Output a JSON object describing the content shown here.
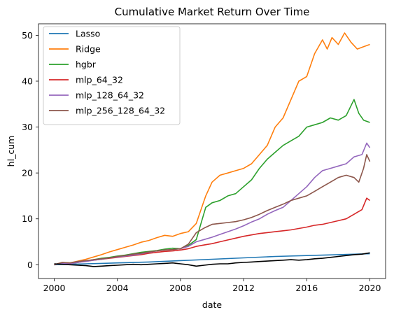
{
  "chart_data": {
    "type": "line",
    "title": "Cumulative Market Return Over Time",
    "xlabel": "date",
    "ylabel": "hl_cum",
    "xlim": [
      2000,
      2020
    ],
    "ylim": [
      -3,
      52.5
    ],
    "x_ticks": [
      2000,
      2004,
      2008,
      2012,
      2016,
      2020
    ],
    "x_tick_labels": [
      "2000",
      "2004",
      "2008",
      "2012",
      "2016",
      "2020"
    ],
    "y_ticks": [
      0,
      10,
      20,
      30,
      40,
      50
    ],
    "y_tick_labels": [
      "0",
      "10",
      "20",
      "30",
      "40",
      "50"
    ],
    "grid": false,
    "legend_position": "upper-left",
    "series": [
      {
        "name": "Lasso",
        "color": "#1f77b4",
        "points": [
          [
            2000,
            0.0
          ],
          [
            2001,
            0.1
          ],
          [
            2002,
            0.2
          ],
          [
            2003,
            0.3
          ],
          [
            2004,
            0.4
          ],
          [
            2006,
            0.6
          ],
          [
            2008,
            0.9
          ],
          [
            2010,
            1.2
          ],
          [
            2012,
            1.5
          ],
          [
            2014,
            1.8
          ],
          [
            2016,
            2.0
          ],
          [
            2018,
            2.2
          ],
          [
            2020,
            2.4
          ]
        ]
      },
      {
        "name": "Ridge",
        "color": "#ff7f0e",
        "points": [
          [
            2000,
            0.0
          ],
          [
            2000.5,
            0.5
          ],
          [
            2001,
            0.4
          ],
          [
            2001.5,
            0.8
          ],
          [
            2002,
            1.2
          ],
          [
            2002.5,
            1.7
          ],
          [
            2003,
            2.2
          ],
          [
            2003.5,
            2.8
          ],
          [
            2004,
            3.3
          ],
          [
            2004.5,
            3.8
          ],
          [
            2005,
            4.3
          ],
          [
            2005.5,
            4.9
          ],
          [
            2006,
            5.3
          ],
          [
            2006.5,
            5.9
          ],
          [
            2007,
            6.4
          ],
          [
            2007.5,
            6.2
          ],
          [
            2008,
            6.8
          ],
          [
            2008.5,
            7.2
          ],
          [
            2009,
            9.0
          ],
          [
            2009.3,
            12.0
          ],
          [
            2009.6,
            15.0
          ],
          [
            2010,
            18.0
          ],
          [
            2010.5,
            19.5
          ],
          [
            2011,
            20.0
          ],
          [
            2011.5,
            20.5
          ],
          [
            2012,
            21.0
          ],
          [
            2012.5,
            22.0
          ],
          [
            2013,
            24.0
          ],
          [
            2013.5,
            26.0
          ],
          [
            2014,
            30.0
          ],
          [
            2014.5,
            32.0
          ],
          [
            2015,
            36.0
          ],
          [
            2015.5,
            40.0
          ],
          [
            2016,
            41.0
          ],
          [
            2016.5,
            46.0
          ],
          [
            2017,
            49.0
          ],
          [
            2017.3,
            47.0
          ],
          [
            2017.6,
            49.5
          ],
          [
            2018,
            48.0
          ],
          [
            2018.4,
            50.5
          ],
          [
            2018.8,
            48.5
          ],
          [
            2019.2,
            47.0
          ],
          [
            2019.6,
            47.5
          ],
          [
            2020,
            48.0
          ]
        ]
      },
      {
        "name": "hgbr",
        "color": "#2ca02c",
        "points": [
          [
            2000,
            0.0
          ],
          [
            2000.5,
            0.3
          ],
          [
            2001,
            0.2
          ],
          [
            2001.5,
            0.5
          ],
          [
            2002,
            0.8
          ],
          [
            2002.5,
            1.1
          ],
          [
            2003,
            1.4
          ],
          [
            2003.5,
            1.6
          ],
          [
            2004,
            1.9
          ],
          [
            2004.5,
            2.1
          ],
          [
            2005,
            2.4
          ],
          [
            2005.5,
            2.7
          ],
          [
            2006,
            2.9
          ],
          [
            2006.5,
            3.1
          ],
          [
            2007,
            3.4
          ],
          [
            2007.5,
            3.6
          ],
          [
            2008,
            3.5
          ],
          [
            2008.5,
            4.2
          ],
          [
            2009,
            5.5
          ],
          [
            2009.3,
            9.0
          ],
          [
            2009.6,
            12.5
          ],
          [
            2010,
            13.5
          ],
          [
            2010.5,
            14.0
          ],
          [
            2011,
            15.0
          ],
          [
            2011.5,
            15.5
          ],
          [
            2012,
            17.0
          ],
          [
            2012.5,
            18.5
          ],
          [
            2013,
            21.0
          ],
          [
            2013.5,
            23.0
          ],
          [
            2014,
            24.5
          ],
          [
            2014.5,
            26.0
          ],
          [
            2015,
            27.0
          ],
          [
            2015.5,
            28.0
          ],
          [
            2016,
            30.0
          ],
          [
            2016.5,
            30.5
          ],
          [
            2017,
            31.0
          ],
          [
            2017.5,
            32.0
          ],
          [
            2018,
            31.5
          ],
          [
            2018.5,
            32.5
          ],
          [
            2019,
            36.0
          ],
          [
            2019.3,
            33.0
          ],
          [
            2019.6,
            31.5
          ],
          [
            2020,
            31.0
          ]
        ]
      },
      {
        "name": "mlp_64_32",
        "color": "#d62728",
        "points": [
          [
            2000,
            0.0
          ],
          [
            2000.5,
            0.4
          ],
          [
            2001,
            0.3
          ],
          [
            2001.5,
            0.5
          ],
          [
            2002,
            0.8
          ],
          [
            2002.5,
            1.0
          ],
          [
            2003,
            1.2
          ],
          [
            2003.5,
            1.4
          ],
          [
            2004,
            1.6
          ],
          [
            2004.5,
            1.8
          ],
          [
            2005,
            2.0
          ],
          [
            2005.5,
            2.2
          ],
          [
            2006,
            2.5
          ],
          [
            2006.5,
            2.7
          ],
          [
            2007,
            2.9
          ],
          [
            2007.5,
            3.0
          ],
          [
            2008,
            3.2
          ],
          [
            2008.5,
            3.5
          ],
          [
            2009,
            4.0
          ],
          [
            2009.5,
            4.3
          ],
          [
            2010,
            4.6
          ],
          [
            2010.5,
            5.0
          ],
          [
            2011,
            5.4
          ],
          [
            2011.5,
            5.8
          ],
          [
            2012,
            6.2
          ],
          [
            2012.5,
            6.5
          ],
          [
            2013,
            6.8
          ],
          [
            2013.5,
            7.0
          ],
          [
            2014,
            7.2
          ],
          [
            2014.5,
            7.4
          ],
          [
            2015,
            7.6
          ],
          [
            2015.5,
            7.9
          ],
          [
            2016,
            8.2
          ],
          [
            2016.5,
            8.6
          ],
          [
            2017,
            8.8
          ],
          [
            2017.5,
            9.2
          ],
          [
            2018,
            9.6
          ],
          [
            2018.5,
            10.0
          ],
          [
            2019,
            11.0
          ],
          [
            2019.5,
            12.0
          ],
          [
            2019.8,
            14.5
          ],
          [
            2020,
            14.0
          ]
        ]
      },
      {
        "name": "mlp_128_64_32",
        "color": "#9467bd",
        "points": [
          [
            2000,
            0.0
          ],
          [
            2000.5,
            0.3
          ],
          [
            2001,
            0.2
          ],
          [
            2001.5,
            0.5
          ],
          [
            2002,
            0.7
          ],
          [
            2002.5,
            1.0
          ],
          [
            2003,
            1.2
          ],
          [
            2003.5,
            1.5
          ],
          [
            2004,
            1.7
          ],
          [
            2004.5,
            1.9
          ],
          [
            2005,
            2.1
          ],
          [
            2005.5,
            2.4
          ],
          [
            2006,
            2.7
          ],
          [
            2006.5,
            3.0
          ],
          [
            2007,
            3.2
          ],
          [
            2007.5,
            3.3
          ],
          [
            2008,
            3.5
          ],
          [
            2008.5,
            4.0
          ],
          [
            2009,
            5.0
          ],
          [
            2009.5,
            5.5
          ],
          [
            2010,
            6.0
          ],
          [
            2010.5,
            6.6
          ],
          [
            2011,
            7.2
          ],
          [
            2011.5,
            7.8
          ],
          [
            2012,
            8.5
          ],
          [
            2012.5,
            9.3
          ],
          [
            2013,
            10.0
          ],
          [
            2013.5,
            11.0
          ],
          [
            2014,
            11.8
          ],
          [
            2014.5,
            12.5
          ],
          [
            2015,
            14.0
          ],
          [
            2015.5,
            15.5
          ],
          [
            2016,
            17.0
          ],
          [
            2016.5,
            19.0
          ],
          [
            2017,
            20.5
          ],
          [
            2017.5,
            21.0
          ],
          [
            2018,
            21.5
          ],
          [
            2018.5,
            22.0
          ],
          [
            2019,
            23.5
          ],
          [
            2019.5,
            24.0
          ],
          [
            2019.8,
            26.5
          ],
          [
            2020,
            25.5
          ]
        ]
      },
      {
        "name": "mlp_256_128_64_32",
        "color": "#8c564b",
        "points": [
          [
            2000,
            0.0
          ],
          [
            2000.5,
            0.5
          ],
          [
            2001,
            0.4
          ],
          [
            2001.5,
            0.7
          ],
          [
            2002,
            0.9
          ],
          [
            2002.5,
            1.1
          ],
          [
            2003,
            1.3
          ],
          [
            2003.5,
            1.5
          ],
          [
            2004,
            1.8
          ],
          [
            2004.5,
            2.0
          ],
          [
            2005,
            2.3
          ],
          [
            2005.5,
            2.5
          ],
          [
            2006,
            2.8
          ],
          [
            2006.5,
            3.0
          ],
          [
            2007,
            3.2
          ],
          [
            2007.5,
            3.3
          ],
          [
            2008,
            3.5
          ],
          [
            2008.5,
            4.5
          ],
          [
            2009,
            7.0
          ],
          [
            2009.5,
            8.0
          ],
          [
            2010,
            8.8
          ],
          [
            2010.5,
            9.0
          ],
          [
            2011,
            9.2
          ],
          [
            2011.5,
            9.4
          ],
          [
            2012,
            9.8
          ],
          [
            2012.5,
            10.3
          ],
          [
            2013,
            11.0
          ],
          [
            2013.5,
            11.8
          ],
          [
            2014,
            12.5
          ],
          [
            2014.5,
            13.2
          ],
          [
            2015,
            14.0
          ],
          [
            2015.5,
            14.5
          ],
          [
            2016,
            15.0
          ],
          [
            2016.5,
            16.0
          ],
          [
            2017,
            17.0
          ],
          [
            2017.5,
            18.0
          ],
          [
            2018,
            19.0
          ],
          [
            2018.5,
            19.5
          ],
          [
            2019,
            19.0
          ],
          [
            2019.3,
            18.0
          ],
          [
            2019.6,
            21.0
          ],
          [
            2019.8,
            24.0
          ],
          [
            2020,
            22.5
          ]
        ]
      },
      {
        "color": "#000000",
        "points": [
          [
            2000,
            0.2
          ],
          [
            2000.5,
            0.1
          ],
          [
            2001,
            0.0
          ],
          [
            2001.5,
            -0.1
          ],
          [
            2002,
            -0.2
          ],
          [
            2002.5,
            -0.4
          ],
          [
            2003,
            -0.3
          ],
          [
            2003.5,
            -0.2
          ],
          [
            2004,
            -0.1
          ],
          [
            2004.5,
            0.0
          ],
          [
            2005,
            0.1
          ],
          [
            2005.5,
            0.0
          ],
          [
            2006,
            0.1
          ],
          [
            2006.5,
            0.2
          ],
          [
            2007,
            0.3
          ],
          [
            2007.5,
            0.4
          ],
          [
            2008,
            0.2
          ],
          [
            2008.5,
            0.0
          ],
          [
            2009,
            -0.3
          ],
          [
            2009.5,
            -0.1
          ],
          [
            2010,
            0.1
          ],
          [
            2010.5,
            0.2
          ],
          [
            2011,
            0.2
          ],
          [
            2011.5,
            0.4
          ],
          [
            2012,
            0.5
          ],
          [
            2012.5,
            0.6
          ],
          [
            2013,
            0.7
          ],
          [
            2013.5,
            0.8
          ],
          [
            2014,
            0.9
          ],
          [
            2014.5,
            1.0
          ],
          [
            2015,
            1.1
          ],
          [
            2015.5,
            1.0
          ],
          [
            2016,
            1.1
          ],
          [
            2016.5,
            1.3
          ],
          [
            2017,
            1.4
          ],
          [
            2017.5,
            1.6
          ],
          [
            2018,
            1.8
          ],
          [
            2018.5,
            2.0
          ],
          [
            2019,
            2.2
          ],
          [
            2019.5,
            2.3
          ],
          [
            2020,
            2.6
          ]
        ]
      }
    ]
  }
}
